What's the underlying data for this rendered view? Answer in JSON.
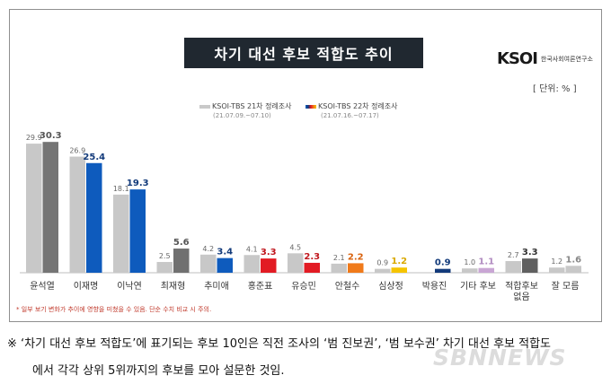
{
  "title": "차기 대선 후보 적합도 추이",
  "logo": {
    "mark": "KSOI",
    "sub": "한국사회여론연구소"
  },
  "unit": "[ 단위: % ]",
  "legend": [
    {
      "label": "KSOI-TBS 21차 정례조사",
      "date": "(21.07.09.~07.10)"
    },
    {
      "label": "KSOI-TBS 22차 정례조사",
      "date": "(21.07.16.~07.17)"
    }
  ],
  "footnote": "* 일부 보기 변화가 추이에 영향을 미쳤을 수 있음. 단순 수치 비교 시 주의.",
  "note_line1": "※ ‘차기 대선 후보 적합도’에 표기되는 후보 10인은 직전 조사의 ‘범 진보권’, ‘범 보수권’ 차기 대선 후보 적합도",
  "note_line2": "에서 각각 상위 5위까지의 후보를 모아 설문한 것임.",
  "watermark": "SBNNEWS",
  "colors": {
    "previous_bar": "#c8c8c8",
    "legend_prev": "#bdbdbd"
  },
  "chart_data": {
    "type": "bar",
    "title": "차기 대선 후보 적합도 추이",
    "categories": [
      "윤석열",
      "이재명",
      "이낙연",
      "최재형",
      "추미애",
      "홍준표",
      "유승민",
      "안철수",
      "심상정",
      "박용진",
      "기타 후보",
      "적합후보 없음",
      "잘 모름"
    ],
    "series": [
      {
        "name": "KSOI-TBS 21차 정례조사",
        "values": [
          29.9,
          26.9,
          18.1,
          2.5,
          4.2,
          4.1,
          4.5,
          2.1,
          0.9,
          null,
          1.0,
          2.7,
          1.2
        ]
      },
      {
        "name": "KSOI-TBS 22차 정례조사",
        "values": [
          30.3,
          25.4,
          19.3,
          5.6,
          3.4,
          3.3,
          2.3,
          2.2,
          1.2,
          0.9,
          1.1,
          3.3,
          1.6
        ]
      }
    ],
    "current_colors": [
      "#757575",
      "#0e5bbd",
      "#0e5bbd",
      "#707070",
      "#0e5bbd",
      "#e21b23",
      "#e21b23",
      "#f07a1a",
      "#f5c400",
      "#123a7a",
      "#c9a6d4",
      "#606060",
      "#c8c8c8"
    ],
    "label_colors": [
      "#555555",
      "#123a7a",
      "#123a7a",
      "#555555",
      "#123a7a",
      "#c0171e",
      "#c0171e",
      "#d9620e",
      "#d9a800",
      "#123a7a",
      "#b08ac0",
      "#333333",
      "#888888"
    ],
    "ylim": [
      0,
      32
    ],
    "legend": "top-left",
    "grid": false
  }
}
